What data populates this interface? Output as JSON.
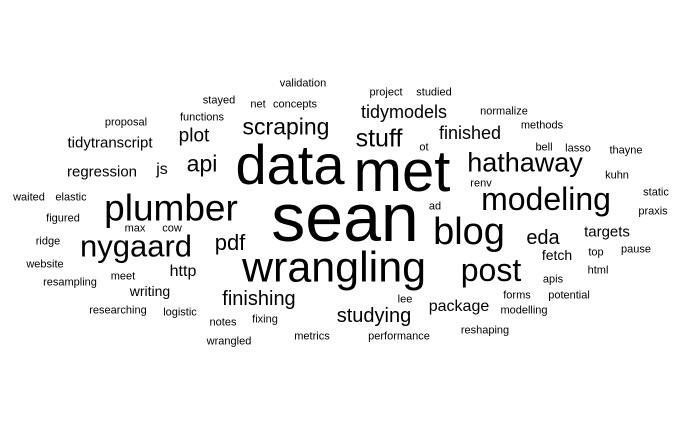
{
  "words": [
    {
      "text": "sean",
      "size": 68
    },
    {
      "text": "met",
      "size": 58
    },
    {
      "text": "data",
      "size": 56
    },
    {
      "text": "wrangling",
      "size": 43
    },
    {
      "text": "plumber",
      "size": 37
    },
    {
      "text": "blog",
      "size": 38
    },
    {
      "text": "post",
      "size": 32
    },
    {
      "text": "modeling",
      "size": 32
    },
    {
      "text": "nygaard",
      "size": 31
    },
    {
      "text": "hathaway",
      "size": 27
    },
    {
      "text": "stuff",
      "size": 25
    },
    {
      "text": "scraping",
      "size": 23
    },
    {
      "text": "api",
      "size": 23
    },
    {
      "text": "pdf",
      "size": 22
    },
    {
      "text": "finishing",
      "size": 20
    },
    {
      "text": "studying",
      "size": 20
    },
    {
      "text": "eda",
      "size": 20
    },
    {
      "text": "tidymodels",
      "size": 18
    },
    {
      "text": "plot",
      "size": 19
    },
    {
      "text": "finished",
      "size": 18
    },
    {
      "text": "package",
      "size": 16
    },
    {
      "text": "targets",
      "size": 15
    },
    {
      "text": "js",
      "size": 16
    },
    {
      "text": "http",
      "size": 16
    },
    {
      "text": "regression",
      "size": 15
    },
    {
      "text": "tidytranscript",
      "size": 15
    },
    {
      "text": "fetch",
      "size": 14
    },
    {
      "text": "writing",
      "size": 14
    },
    {
      "text": "validation",
      "size": 11
    },
    {
      "text": "project",
      "size": 11
    },
    {
      "text": "studied",
      "size": 11
    },
    {
      "text": "stayed",
      "size": 11
    },
    {
      "text": "net",
      "size": 11
    },
    {
      "text": "concepts",
      "size": 11
    },
    {
      "text": "functions",
      "size": 11
    },
    {
      "text": "normalize",
      "size": 11
    },
    {
      "text": "proposal",
      "size": 11
    },
    {
      "text": "methods",
      "size": 11
    },
    {
      "text": "ot",
      "size": 11
    },
    {
      "text": "bell",
      "size": 11
    },
    {
      "text": "lasso",
      "size": 11
    },
    {
      "text": "thayne",
      "size": 11
    },
    {
      "text": "renv",
      "size": 11
    },
    {
      "text": "kuhn",
      "size": 11
    },
    {
      "text": "waited",
      "size": 11
    },
    {
      "text": "elastic",
      "size": 11
    },
    {
      "text": "static",
      "size": 11
    },
    {
      "text": "ad",
      "size": 11
    },
    {
      "text": "praxis",
      "size": 11
    },
    {
      "text": "figured",
      "size": 11
    },
    {
      "text": "max",
      "size": 11
    },
    {
      "text": "cow",
      "size": 11
    },
    {
      "text": "ridge",
      "size": 11
    },
    {
      "text": "top",
      "size": 11
    },
    {
      "text": "pause",
      "size": 11
    },
    {
      "text": "website",
      "size": 11
    },
    {
      "text": "html",
      "size": 11
    },
    {
      "text": "meet",
      "size": 11
    },
    {
      "text": "apis",
      "size": 11
    },
    {
      "text": "resampling",
      "size": 11
    },
    {
      "text": "forms",
      "size": 11
    },
    {
      "text": "potential",
      "size": 11
    },
    {
      "text": "lee",
      "size": 11
    },
    {
      "text": "researching",
      "size": 11
    },
    {
      "text": "logistic",
      "size": 11
    },
    {
      "text": "modelling",
      "size": 11
    },
    {
      "text": "notes",
      "size": 11
    },
    {
      "text": "fixing",
      "size": 11
    },
    {
      "text": "reshaping",
      "size": 11
    },
    {
      "text": "metrics",
      "size": 11
    },
    {
      "text": "performance",
      "size": 11
    },
    {
      "text": "wrangled",
      "size": 11
    }
  ]
}
